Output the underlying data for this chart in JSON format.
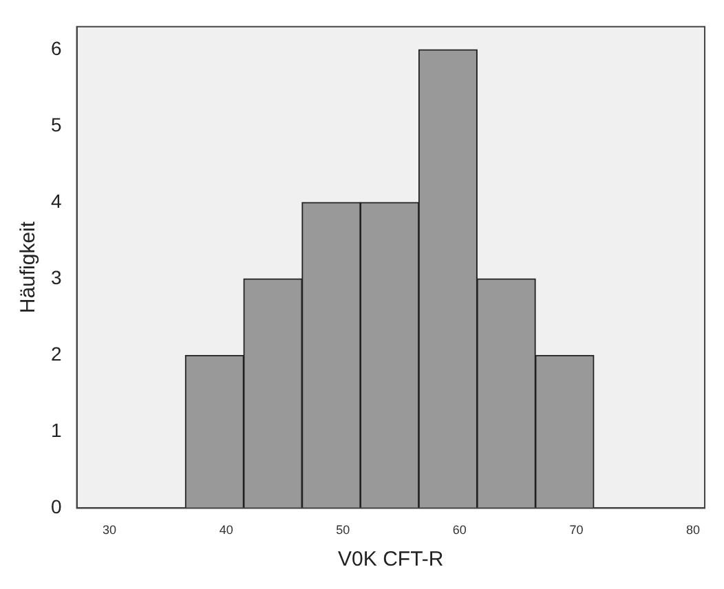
{
  "chart_data": {
    "type": "histogram",
    "xlabel": "V0K CFT-R",
    "ylabel": "Häufigkeit",
    "bins": [
      36.5,
      41.5,
      46.5,
      51.5,
      56.5,
      61.5,
      66.5,
      71.5
    ],
    "values": [
      2,
      3,
      4,
      4,
      6,
      3,
      2
    ],
    "color": "#999999",
    "xlim": [
      27.2,
      81
    ],
    "xticks": [
      30,
      40,
      50,
      60,
      70,
      80
    ],
    "ylim": [
      0,
      6.3
    ],
    "yticks": [
      0,
      1,
      2,
      3,
      4,
      5,
      6
    ],
    "grid": false,
    "legend": false
  }
}
